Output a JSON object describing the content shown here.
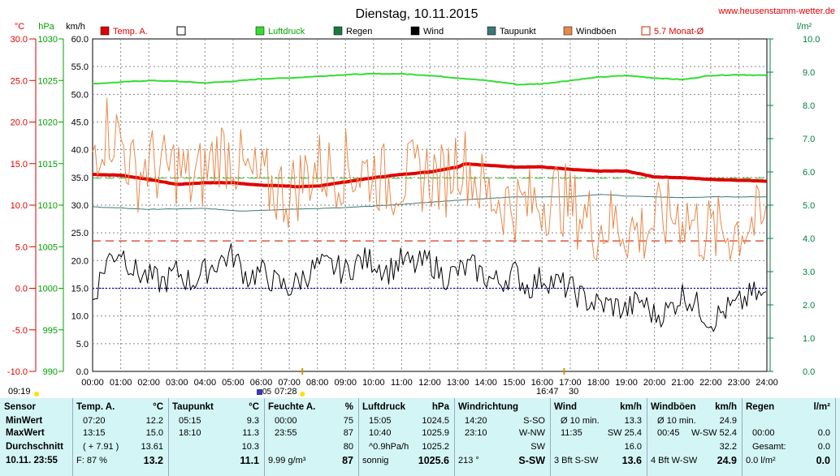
{
  "title": "Dienstag, 10.11.2015",
  "website": "www.heusenstamm-wetter.de",
  "axes": {
    "left1": {
      "unit": "°C",
      "ticks": [
        "30.0",
        "25.0",
        "20.0",
        "15.0",
        "10.0",
        "5.0",
        "0.0",
        "-5.0",
        "-10.0"
      ],
      "color": "#e00000"
    },
    "left2": {
      "unit": "hPa",
      "ticks": [
        "1030",
        "1025",
        "1020",
        "1015",
        "1010",
        "1005",
        "1000",
        "995",
        "990"
      ],
      "color": "#00a000"
    },
    "left3": {
      "unit": "km/h",
      "ticks": [
        "60.0",
        "55.0",
        "50.0",
        "45.0",
        "40.0",
        "35.0",
        "30.0",
        "25.0",
        "20.0",
        "15.0",
        "10.0",
        "5.0",
        "0.0"
      ],
      "color": "#000000"
    },
    "right": {
      "unit": "l/m²",
      "ticks": [
        "10.0",
        "9.0",
        "8.0",
        "7.0",
        "6.0",
        "5.0",
        "4.0",
        "3.0",
        "2.0",
        "1.0",
        "0.0"
      ],
      "color": "#008040"
    },
    "x": {
      "ticks": [
        "00:00",
        "01:00",
        "02:00",
        "03:00",
        "04:00",
        "05:00",
        "06:00",
        "07:00",
        "08:00",
        "09:00",
        "10:00",
        "11:00",
        "12:00",
        "13:00",
        "14:00",
        "15:00",
        "16:00",
        "17:00",
        "18:00",
        "19:00",
        "20:00",
        "21:00",
        "22:00",
        "23:00",
        "24:00"
      ]
    }
  },
  "legend": [
    {
      "label": "Temp. A.",
      "color": "#e00000",
      "box": "filled"
    },
    {
      "label": "",
      "color": "#000000",
      "box": "empty"
    },
    {
      "label": "Luftdruck",
      "color": "#33dd33",
      "box": "filled"
    },
    {
      "label": "Regen",
      "color": "#1a7a3a",
      "box": "filled"
    },
    {
      "label": "Wind",
      "color": "#000000",
      "box": "filled"
    },
    {
      "label": "Taupunkt",
      "color": "#3a7878",
      "box": "filled"
    },
    {
      "label": "Windböen",
      "color": "#e8884a",
      "box": "filled"
    },
    {
      "label": "5.7 Monat-Ø",
      "color": "#cc2200",
      "box": "empty"
    }
  ],
  "markers": {
    "sunrise": "07:28",
    "sunset": "16:47",
    "left_time": "09:19",
    "sunrise_partial": "05",
    "sunset_partial": "30"
  },
  "chart_data": {
    "type": "line",
    "x_range": [
      "00:00",
      "24:00"
    ],
    "grid": true,
    "series": [
      {
        "name": "Temp. A.",
        "unit": "°C",
        "color": "#e00000",
        "x": [
          0,
          1,
          2,
          3,
          4,
          5,
          6,
          7,
          7.33,
          8,
          9,
          10,
          11,
          12,
          13,
          13.25,
          14,
          15,
          16,
          17,
          18,
          19,
          20,
          21,
          22,
          23,
          24
        ],
        "y": [
          13.7,
          13.6,
          13.1,
          12.5,
          12.7,
          12.7,
          12.4,
          12.3,
          12.2,
          12.3,
          12.8,
          13.3,
          13.7,
          14.0,
          14.6,
          15.0,
          14.8,
          14.6,
          14.6,
          14.3,
          14.1,
          14.1,
          13.4,
          13.3,
          13.1,
          13.0,
          12.9
        ]
      },
      {
        "name": "Luftdruck",
        "unit": "hPa",
        "color": "#33dd33",
        "x": [
          0,
          1,
          2,
          3,
          4,
          5,
          6,
          7,
          8,
          9,
          10,
          11,
          12,
          13,
          14,
          15,
          15.08,
          16,
          17,
          18,
          19,
          20,
          21,
          22,
          23,
          24
        ],
        "y": [
          1024.6,
          1024.8,
          1025.0,
          1024.9,
          1024.7,
          1024.9,
          1025.2,
          1025.3,
          1025.5,
          1025.7,
          1025.8,
          1025.8,
          1025.6,
          1025.3,
          1025.0,
          1024.6,
          1024.5,
          1024.6,
          1025.0,
          1025.4,
          1025.6,
          1025.3,
          1025.1,
          1025.6,
          1025.7,
          1025.6
        ]
      },
      {
        "name": "Taupunkt",
        "unit": "°C",
        "color": "#3a7878",
        "x": [
          0,
          2,
          4,
          5.25,
          7,
          9,
          11,
          13,
          15,
          17,
          18.17,
          19,
          20,
          21,
          22,
          24
        ],
        "y": [
          9.8,
          9.5,
          9.6,
          9.3,
          9.5,
          9.7,
          10.1,
          10.6,
          11.0,
          11.0,
          11.3,
          11.1,
          11.0,
          10.9,
          11.0,
          11.0
        ]
      },
      {
        "name": "Wind",
        "unit": "km/h",
        "color": "#000000",
        "x": [
          0,
          0.5,
          1,
          1.5,
          2,
          2.5,
          3,
          3.5,
          4,
          4.5,
          5,
          5.5,
          6,
          6.5,
          7,
          7.5,
          8,
          8.5,
          9,
          9.5,
          10,
          10.5,
          11,
          11.5,
          12,
          12.5,
          13,
          13.5,
          14,
          14.5,
          15,
          15.5,
          16,
          16.5,
          17,
          17.5,
          18,
          18.5,
          19,
          19.5,
          20,
          20.5,
          21,
          21.5,
          22,
          22.5,
          23,
          23.5,
          24
        ],
        "y": [
          13,
          20,
          22,
          18,
          17,
          16,
          18,
          16,
          18,
          20,
          21,
          17,
          18,
          16,
          15,
          17,
          19,
          19,
          18,
          20,
          20,
          18,
          20,
          19,
          20,
          17,
          18,
          19,
          17,
          16,
          18,
          15,
          17,
          16,
          15,
          13,
          12,
          12,
          11,
          13,
          10,
          11,
          14,
          12,
          9,
          11,
          12,
          14,
          13
        ]
      },
      {
        "name": "Windböen",
        "unit": "km/h",
        "color": "#e8884a",
        "x": [
          0,
          0.5,
          1,
          1.5,
          2,
          2.5,
          3,
          3.5,
          4,
          4.5,
          5,
          5.5,
          6,
          6.5,
          7,
          7.5,
          8,
          8.5,
          9,
          9.5,
          10,
          10.5,
          11,
          11.5,
          12,
          12.5,
          13,
          13.5,
          14,
          14.5,
          15,
          15.5,
          16,
          16.5,
          17,
          17.5,
          18,
          18.5,
          19,
          19.5,
          20,
          20.5,
          21,
          21.5,
          22,
          22.5,
          23,
          23.5,
          24
        ],
        "y": [
          40,
          44,
          42,
          35,
          38,
          36,
          37,
          34,
          36,
          40,
          39,
          35,
          34,
          33,
          32,
          35,
          37,
          36,
          37,
          36,
          36,
          34,
          35,
          35,
          36,
          34,
          39,
          36,
          32,
          31,
          30,
          30,
          31,
          32,
          30,
          28,
          26,
          27,
          26,
          25,
          27,
          28,
          29,
          26,
          25,
          25,
          26,
          27,
          26
        ]
      }
    ],
    "reference_lines": [
      {
        "name": "5.7 Monat-Ø",
        "unit": "°C",
        "value": 5.7,
        "color": "#cc2200",
        "style": "dashed"
      },
      {
        "name": "",
        "unit": "°C",
        "value": 0.0,
        "color": "#0000cc",
        "style": "dotted"
      },
      {
        "name": "",
        "unit": "hPa",
        "value": 1013.25,
        "color": "#33cc33",
        "style": "dashed"
      }
    ]
  },
  "table": {
    "columns": [
      {
        "header": "Sensor",
        "unit": "",
        "rows": [
          "MinWert",
          "MaxWert",
          "Durchschnitt",
          "10.11. 23:55"
        ]
      },
      {
        "header": "Temp. A.",
        "unit": "°C",
        "rows_time": [
          "07:20",
          "13:15",
          "( + 7.91 )",
          "F: 87 %"
        ],
        "rows_val": [
          "12.2",
          "15.0",
          "13.61",
          "13.2"
        ]
      },
      {
        "header": "Taupunkt",
        "unit": "°C",
        "rows_time": [
          "05:15",
          "18:10",
          "",
          ""
        ],
        "rows_val": [
          "9.3",
          "11.3",
          "10.3",
          "11.1"
        ]
      },
      {
        "header": "Feuchte A.",
        "unit": "%",
        "rows_time": [
          "00:00",
          "23:55",
          "",
          "9.99 g/m³"
        ],
        "rows_val": [
          "75",
          "87",
          "80",
          "87"
        ]
      },
      {
        "header": "Luftdruck",
        "unit": "hPa",
        "rows_time": [
          "15:05",
          "10:40",
          "^0.9hPa/h",
          "sonnig"
        ],
        "rows_val": [
          "1024.5",
          "1025.9",
          "1025.2",
          "1025.6"
        ]
      },
      {
        "header": "Windrichtung",
        "unit": "",
        "rows_time": [
          "14:20",
          "23:10",
          "",
          "213 °"
        ],
        "rows_val": [
          "S-SO",
          "W-NW",
          "SW",
          "S-SW"
        ]
      },
      {
        "header": "Wind",
        "unit": "km/h",
        "rows_time": [
          "Ø 10 min.",
          "11:35",
          "",
          "3 Bft S-SW"
        ],
        "rows_mid": [
          "",
          "SW 25.4",
          "",
          ""
        ],
        "rows_val": [
          "13.3",
          "",
          "16.0",
          "13.6"
        ]
      },
      {
        "header": "Windböen",
        "unit": "km/h",
        "rows_time": [
          "Ø 10 min.",
          "00:45",
          "",
          "4 Bft W-SW"
        ],
        "rows_mid": [
          "",
          "W-SW 52.4",
          "",
          ""
        ],
        "rows_val": [
          "24.9",
          "",
          "32.2",
          "24.9"
        ]
      },
      {
        "header": "Regen",
        "unit": "l/m²",
        "rows_time": [
          "",
          "00:00",
          "Gesamt:",
          "0.0 l/m²"
        ],
        "rows_val": [
          "",
          "0.0",
          "0.0",
          "0.0"
        ]
      }
    ]
  }
}
